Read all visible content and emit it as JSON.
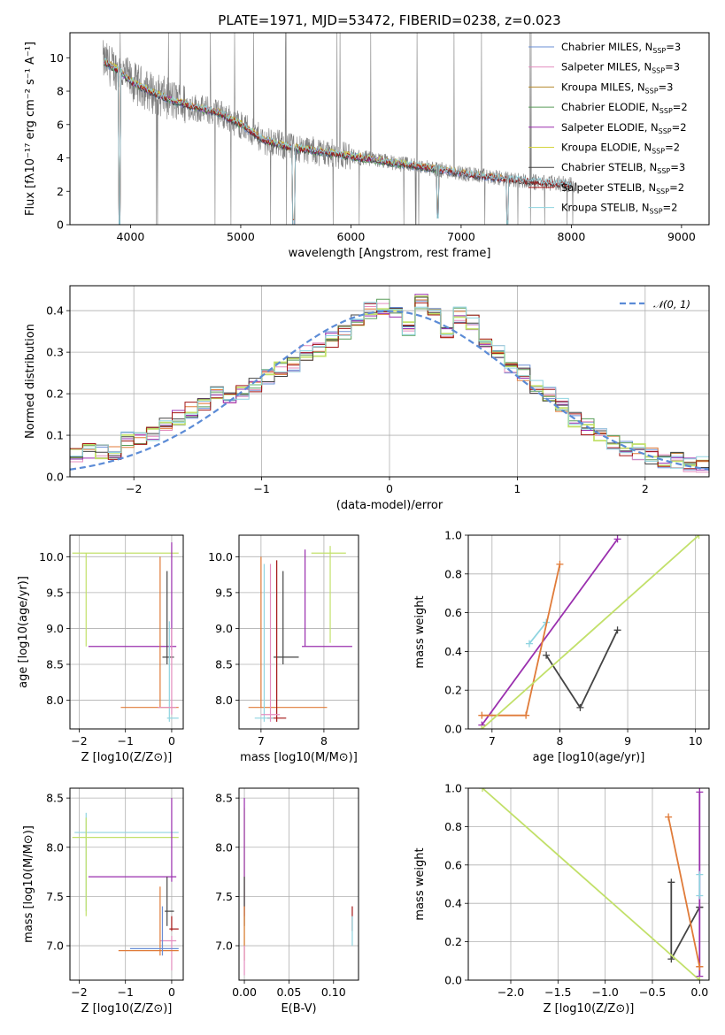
{
  "figure_title": "PLATE=1971, MJD=53472, FIBERID=0238, z=0.023",
  "colors": {
    "Chabrier MILES": "#6a8fd6",
    "Salpeter MILES": "#e48ebf",
    "Kroupa MILES": "#b58a2e",
    "Chabrier ELODIE": "#5a9e5a",
    "Salpeter ELODIE": "#9a2fae",
    "Kroupa ELODIE": "#d4d43c",
    "Chabrier STELIB": "#444444",
    "Salpeter STELIB": "#a31515",
    "Kroupa STELIB": "#8fd4e0",
    "observed": "#7f7f7f",
    "orange": "#e07b39",
    "lime": "#c2e06a",
    "normal": "#5b8bd6"
  },
  "chart_data": [
    {
      "id": "spectrum",
      "type": "line",
      "title": "PLATE=1971, MJD=53472, FIBERID=0238, z=0.023",
      "xlabel": "wavelength [Angstrom, rest frame]",
      "ylabel": "Flux [fλ10⁻¹⁷ erg cm⁻² s⁻¹ A⁻¹]",
      "xlim": [
        3450,
        9250
      ],
      "ylim": [
        0,
        11.5
      ],
      "xticks": [
        4000,
        5000,
        6000,
        7000,
        8000,
        9000
      ],
      "yticks": [
        0,
        2,
        4,
        6,
        8,
        10
      ],
      "grid": false,
      "legend_position": "top-right",
      "legend": [
        {
          "label": "Chabrier MILES, N",
          "sub": "SSP",
          "tail": "=3",
          "color": "#6a8fd6"
        },
        {
          "label": "Salpeter MILES, N",
          "sub": "SSP",
          "tail": "=3",
          "color": "#e48ebf"
        },
        {
          "label": "Kroupa MILES, N",
          "sub": "SSP",
          "tail": "=3",
          "color": "#b58a2e"
        },
        {
          "label": "Chabrier ELODIE, N",
          "sub": "SSP",
          "tail": "=2",
          "color": "#5a9e5a"
        },
        {
          "label": "Salpeter ELODIE, N",
          "sub": "SSP",
          "tail": "=2",
          "color": "#9a2fae"
        },
        {
          "label": "Kroupa ELODIE, N",
          "sub": "SSP",
          "tail": "=2",
          "color": "#d4d43c"
        },
        {
          "label": "Chabrier STELIB, N",
          "sub": "SSP",
          "tail": "=3",
          "color": "#444444"
        },
        {
          "label": "Salpeter STELIB, N",
          "sub": "SSP",
          "tail": "=2",
          "color": "#a31515"
        },
        {
          "label": "Kroupa STELIB, N",
          "sub": "SSP",
          "tail": "=2",
          "color": "#8fd4e0"
        }
      ],
      "continuum": {
        "x": [
          3750,
          3900,
          4000,
          4200,
          4400,
          4600,
          4800,
          5000,
          5200,
          5400,
          5600,
          5800,
          6000,
          6200,
          6400,
          6600,
          6800,
          7000,
          7200,
          7400,
          7600,
          7800,
          8000
        ],
        "y": [
          9.8,
          9.2,
          8.6,
          7.9,
          7.4,
          7.0,
          6.7,
          6.0,
          5.1,
          4.7,
          4.5,
          4.3,
          4.1,
          3.9,
          3.7,
          3.5,
          3.3,
          3.1,
          2.9,
          2.75,
          2.6,
          2.5,
          2.4
        ]
      },
      "models_end": [
        7420,
        7420,
        7420,
        6800,
        6800,
        6800,
        8000,
        8000,
        8000
      ],
      "absorption_dips": [
        {
          "x": 3900,
          "y": 0.0
        },
        {
          "x": 5480,
          "y": 0.0
        },
        {
          "x": 6790,
          "y": 0.4
        },
        {
          "x": 7420,
          "y": 0.0
        }
      ]
    },
    {
      "id": "residuals",
      "type": "step",
      "xlabel": "(data-model)/error",
      "ylabel": "Normed distribution",
      "xlim": [
        -2.5,
        2.5
      ],
      "ylim": [
        0,
        0.46
      ],
      "xticks": [
        -2,
        -1,
        0,
        1,
        2
      ],
      "yticks": [
        0.0,
        0.1,
        0.2,
        0.3,
        0.4
      ],
      "grid": true,
      "legend_position": "top-right",
      "legend": [
        {
          "label": "𝒩(0, 1)",
          "color": "#5b8bd6",
          "dashed": true
        }
      ],
      "bin_width": 0.1,
      "bin_start": -2.5,
      "base_hist": [
        0.05,
        0.06,
        0.06,
        0.06,
        0.09,
        0.09,
        0.1,
        0.13,
        0.14,
        0.16,
        0.18,
        0.2,
        0.19,
        0.2,
        0.22,
        0.24,
        0.26,
        0.27,
        0.3,
        0.31,
        0.33,
        0.35,
        0.38,
        0.4,
        0.41,
        0.39,
        0.36,
        0.42,
        0.4,
        0.35,
        0.39,
        0.37,
        0.33,
        0.3,
        0.27,
        0.25,
        0.22,
        0.2,
        0.17,
        0.14,
        0.12,
        0.1,
        0.08,
        0.07,
        0.06,
        0.05,
        0.04,
        0.04,
        0.03,
        0.03
      ]
    },
    {
      "id": "age-vs-Z",
      "type": "scatter",
      "xlabel": "Z [log10(Z/Z⊙)]",
      "ylabel": "age  [log10(age/yr)]",
      "xlim": [
        -2.2,
        0.25
      ],
      "ylim": [
        7.6,
        10.3
      ],
      "xticks": [
        -2,
        -1,
        0
      ],
      "yticks": [
        8.0,
        8.5,
        9.0,
        9.5,
        10.0
      ],
      "grid": true
    },
    {
      "id": "age-vs-mass",
      "type": "scatter",
      "xlabel": "mass [log10(M/M⊙)]",
      "ylabel": "",
      "xlim": [
        6.65,
        8.55
      ],
      "ylim": [
        7.6,
        10.3
      ],
      "xticks": [
        7,
        8
      ],
      "yticks": [
        8.0,
        8.5,
        9.0,
        9.5,
        10.0
      ],
      "grid": true
    },
    {
      "id": "weight-vs-age",
      "type": "line",
      "xlabel": "age  [log10(age/yr)]",
      "ylabel": "mass weight",
      "xlim": [
        6.65,
        10.2
      ],
      "ylim": [
        0,
        1.0
      ],
      "xticks": [
        7,
        8,
        9,
        10
      ],
      "yticks": [
        0.0,
        0.2,
        0.4,
        0.6,
        0.8,
        1.0
      ],
      "grid": true,
      "series": [
        {
          "color": "#444444",
          "x": [
            7.8,
            8.3,
            8.85
          ],
          "y": [
            0.38,
            0.11,
            0.51
          ]
        },
        {
          "color": "#9a2fae",
          "x": [
            6.85,
            8.85
          ],
          "y": [
            0.02,
            0.98
          ]
        },
        {
          "color": "#8fd4e0",
          "x": [
            7.55,
            7.8
          ],
          "y": [
            0.44,
            0.55
          ]
        },
        {
          "color": "#e07b39",
          "x": [
            6.85,
            7.5,
            8.0
          ],
          "y": [
            0.07,
            0.07,
            0.85
          ]
        },
        {
          "color": "#c2e06a",
          "x": [
            6.85,
            10.05
          ],
          "y": [
            0.0,
            1.0
          ]
        }
      ]
    },
    {
      "id": "mass-vs-Z",
      "type": "scatter",
      "xlabel": "Z [log10(Z/Z⊙)]",
      "ylabel": "mass [log10(M/M⊙)]",
      "xlim": [
        -2.2,
        0.25
      ],
      "ylim": [
        6.65,
        8.6
      ],
      "xticks": [
        -2,
        -1,
        0
      ],
      "yticks": [
        7.0,
        7.5,
        8.0,
        8.5
      ],
      "grid": true
    },
    {
      "id": "mass-vs-EBV",
      "type": "scatter",
      "xlabel": "E(B-V)",
      "ylabel": "",
      "xlim": [
        -0.006,
        0.128
      ],
      "ylim": [
        6.65,
        8.6
      ],
      "xticks": [
        0.0,
        0.05,
        0.1
      ],
      "xticklabels": [
        "0.00",
        "0.05",
        "0.10"
      ],
      "yticks": [
        7.0,
        7.5,
        8.0,
        8.5
      ],
      "grid": true
    },
    {
      "id": "weight-vs-Z",
      "type": "line",
      "xlabel": "Z [log10(Z/Z⊙)]",
      "ylabel": "mass weight",
      "xlim": [
        -2.45,
        0.1
      ],
      "ylim": [
        0,
        1.0
      ],
      "xticks": [
        -2.0,
        -1.5,
        -1.0,
        -0.5,
        0.0
      ],
      "yticks": [
        0.0,
        0.2,
        0.4,
        0.6,
        0.8,
        1.0
      ],
      "grid": true,
      "series": [
        {
          "color": "#444444",
          "x": [
            -0.3,
            -0.3,
            0.0,
            0.0
          ],
          "y": [
            0.51,
            0.11,
            0.38,
            0.38
          ]
        },
        {
          "color": "#9a2fae",
          "x": [
            0.0,
            0.0
          ],
          "y": [
            0.02,
            0.98
          ]
        },
        {
          "color": "#8fd4e0",
          "x": [
            0.0,
            0.0
          ],
          "y": [
            0.44,
            0.55
          ]
        },
        {
          "color": "#e07b39",
          "x": [
            -0.33,
            0.0,
            0.0
          ],
          "y": [
            0.85,
            0.07,
            0.07
          ]
        },
        {
          "color": "#c2e06a",
          "x": [
            -2.3,
            0.0
          ],
          "y": [
            1.0,
            0.0
          ]
        }
      ]
    }
  ]
}
